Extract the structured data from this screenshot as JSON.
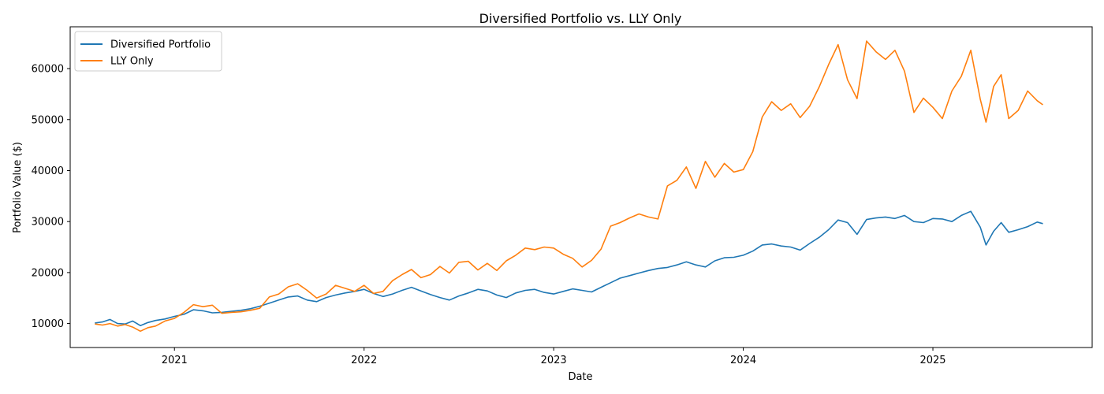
{
  "chart_data": {
    "type": "line",
    "title": "Diversified Portfolio vs. LLY Only",
    "xlabel": "Date",
    "ylabel": "Portfolio Value ($)",
    "x_tick_labels": [
      "2021",
      "2022",
      "2023",
      "2024",
      "2025"
    ],
    "y_tick_labels": [
      "10000",
      "20000",
      "30000",
      "40000",
      "50000",
      "60000"
    ],
    "y_ticks": [
      10000,
      20000,
      30000,
      40000,
      50000,
      60000
    ],
    "x_ticks": [
      2021.0,
      2022.0,
      2023.0,
      2024.0,
      2025.0
    ],
    "xlim": [
      2020.45,
      2025.84
    ],
    "ylim": [
      5300,
      68200
    ],
    "grid": false,
    "legend_position": "top-left",
    "series": [
      {
        "name": "Diversified Portfolio",
        "color": "#1f77b4",
        "x": [
          2020.58,
          2020.62,
          2020.66,
          2020.7,
          2020.74,
          2020.78,
          2020.82,
          2020.86,
          2020.9,
          2020.95,
          2021.0,
          2021.05,
          2021.1,
          2021.15,
          2021.2,
          2021.25,
          2021.3,
          2021.35,
          2021.4,
          2021.45,
          2021.5,
          2021.55,
          2021.6,
          2021.65,
          2021.7,
          2021.75,
          2021.8,
          2021.85,
          2021.9,
          2021.95,
          2022.0,
          2022.05,
          2022.1,
          2022.15,
          2022.2,
          2022.25,
          2022.3,
          2022.35,
          2022.4,
          2022.45,
          2022.5,
          2022.55,
          2022.6,
          2022.65,
          2022.7,
          2022.75,
          2022.8,
          2022.85,
          2022.9,
          2022.95,
          2023.0,
          2023.05,
          2023.1,
          2023.15,
          2023.2,
          2023.25,
          2023.3,
          2023.35,
          2023.4,
          2023.45,
          2023.5,
          2023.55,
          2023.6,
          2023.65,
          2023.7,
          2023.75,
          2023.8,
          2023.85,
          2023.9,
          2023.95,
          2024.0,
          2024.05,
          2024.1,
          2024.15,
          2024.2,
          2024.25,
          2024.3,
          2024.35,
          2024.4,
          2024.45,
          2024.5,
          2024.55,
          2024.6,
          2024.65,
          2024.7,
          2024.75,
          2024.8,
          2024.85,
          2024.9,
          2024.95,
          2025.0,
          2025.05,
          2025.1,
          2025.15,
          2025.2,
          2025.25,
          2025.28,
          2025.32,
          2025.36,
          2025.4,
          2025.45,
          2025.5,
          2025.55,
          2025.58
        ],
        "values": [
          10100,
          10300,
          10800,
          10000,
          9900,
          10500,
          9600,
          10200,
          10600,
          10900,
          11400,
          11800,
          12700,
          12500,
          12100,
          12200,
          12400,
          12600,
          12900,
          13400,
          14000,
          14600,
          15200,
          15400,
          14600,
          14300,
          15100,
          15600,
          16000,
          16300,
          16700,
          15900,
          15300,
          15800,
          16500,
          17100,
          16400,
          15700,
          15100,
          14600,
          15400,
          16000,
          16700,
          16400,
          15600,
          15100,
          16000,
          16500,
          16700,
          16100,
          15800,
          16300,
          16800,
          16500,
          16200,
          17100,
          18000,
          18900,
          19400,
          19900,
          20400,
          20800,
          21000,
          21500,
          22100,
          21500,
          21100,
          22300,
          22900,
          23000,
          23400,
          24200,
          25400,
          25600,
          25200,
          25000,
          24400,
          25700,
          26900,
          28400,
          30300,
          29800,
          27500,
          30400,
          30700,
          30900,
          30600,
          31200,
          30000,
          29800,
          30600,
          30500,
          30000,
          31200,
          32000,
          28900,
          25400,
          28100,
          29800,
          27900,
          28400,
          29000,
          29900,
          29600
        ]
      },
      {
        "name": "LLY Only",
        "color": "#ff7f0e",
        "x": [
          2020.58,
          2020.62,
          2020.66,
          2020.7,
          2020.74,
          2020.78,
          2020.82,
          2020.86,
          2020.9,
          2020.95,
          2021.0,
          2021.05,
          2021.1,
          2021.15,
          2021.2,
          2021.25,
          2021.3,
          2021.35,
          2021.4,
          2021.45,
          2021.5,
          2021.55,
          2021.6,
          2021.65,
          2021.7,
          2021.75,
          2021.8,
          2021.85,
          2021.9,
          2021.95,
          2022.0,
          2022.05,
          2022.1,
          2022.15,
          2022.2,
          2022.25,
          2022.3,
          2022.35,
          2022.4,
          2022.45,
          2022.5,
          2022.55,
          2022.6,
          2022.65,
          2022.7,
          2022.75,
          2022.8,
          2022.85,
          2022.9,
          2022.95,
          2023.0,
          2023.05,
          2023.1,
          2023.15,
          2023.2,
          2023.25,
          2023.3,
          2023.35,
          2023.4,
          2023.45,
          2023.5,
          2023.55,
          2023.6,
          2023.65,
          2023.7,
          2023.75,
          2023.8,
          2023.85,
          2023.9,
          2023.95,
          2024.0,
          2024.05,
          2024.1,
          2024.15,
          2024.2,
          2024.25,
          2024.3,
          2024.35,
          2024.4,
          2024.45,
          2024.5,
          2024.55,
          2024.6,
          2024.65,
          2024.7,
          2024.75,
          2024.8,
          2024.85,
          2024.9,
          2024.95,
          2025.0,
          2025.05,
          2025.1,
          2025.15,
          2025.2,
          2025.25,
          2025.28,
          2025.32,
          2025.36,
          2025.4,
          2025.45,
          2025.5,
          2025.55,
          2025.58
        ],
        "values": [
          9900,
          9700,
          10000,
          9500,
          9800,
          9300,
          8500,
          9200,
          9500,
          10500,
          11000,
          12200,
          13700,
          13300,
          13600,
          12000,
          12200,
          12300,
          12600,
          13000,
          15200,
          15800,
          17200,
          17800,
          16500,
          15000,
          15800,
          17500,
          16900,
          16300,
          17500,
          15900,
          16300,
          18400,
          19600,
          20600,
          19000,
          19600,
          21200,
          19900,
          22000,
          22200,
          20500,
          21800,
          20400,
          22300,
          23400,
          24800,
          24500,
          25000,
          24800,
          23600,
          22800,
          21100,
          22400,
          24600,
          29100,
          29800,
          30700,
          31500,
          30900,
          30500,
          37000,
          38100,
          40700,
          36500,
          41800,
          38700,
          41400,
          39700,
          40200,
          43700,
          50500,
          53500,
          51800,
          53100,
          50400,
          52600,
          56400,
          60800,
          64700,
          57800,
          54100,
          65400,
          63300,
          61800,
          63600,
          59500,
          51400,
          54200,
          52400,
          50200,
          55600,
          58500,
          63600,
          54000,
          49500,
          56500,
          58800,
          50200,
          51800,
          55600,
          53700,
          52900
        ]
      }
    ]
  }
}
